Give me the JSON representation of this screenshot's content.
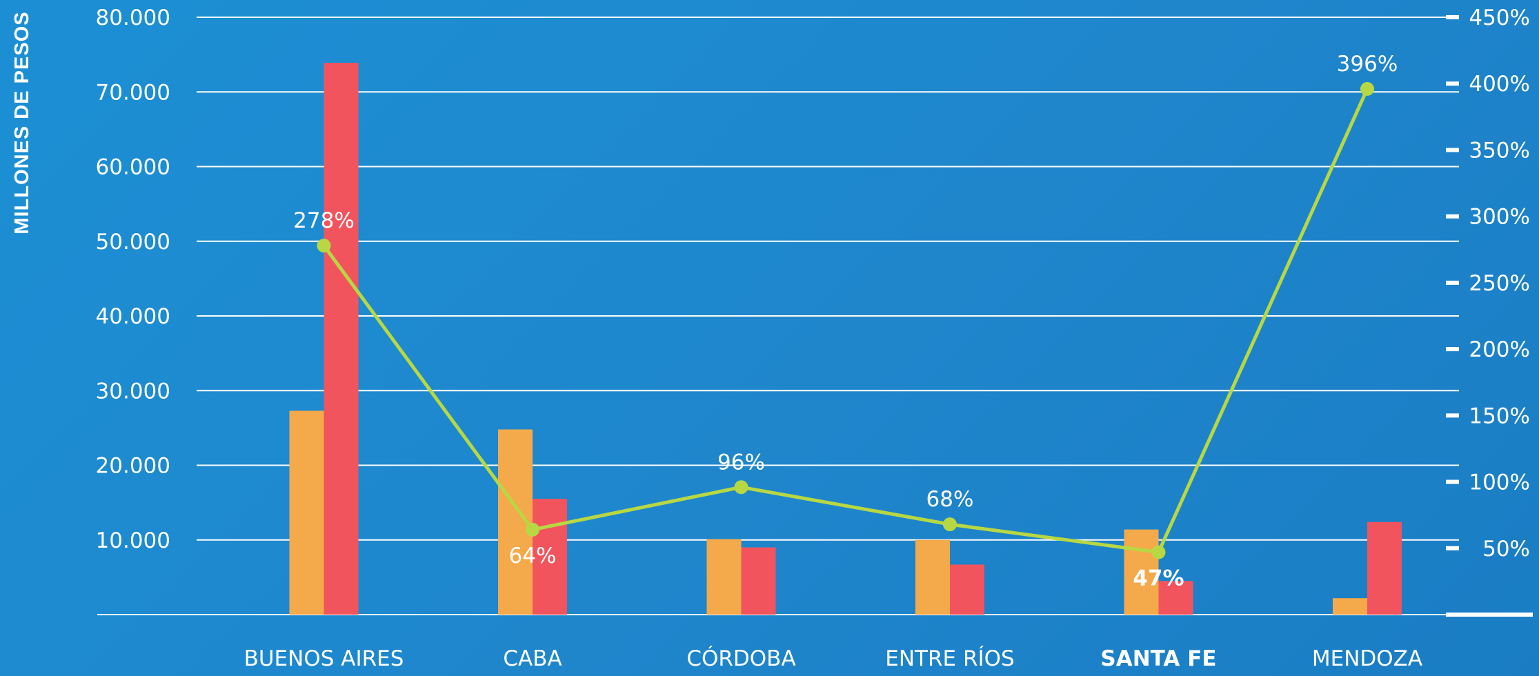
{
  "chart_data": {
    "type": "bar",
    "categories": [
      "BUENOS AIRES",
      "CABA",
      "CÓRDOBA",
      "ENTRE RÍOS",
      "SANTA FE",
      "MENDOZA"
    ],
    "highlighted_category": "SANTA FE",
    "series": [
      {
        "values": [
          27300,
          24800,
          10100,
          10000,
          11400,
          2200
        ],
        "color": "#f4a94a"
      },
      {
        "values": [
          73900,
          15500,
          9000,
          6700,
          4500,
          12400
        ],
        "color": "#f2545e"
      }
    ],
    "line_series": {
      "axis": "right",
      "values": [
        278,
        64,
        96,
        68,
        47,
        396
      ],
      "labels": [
        "278%",
        "64%",
        "96%",
        "68%",
        "47%",
        "396%"
      ],
      "color": "#b8d843"
    },
    "ylabel": "MILLONES DE PESOS",
    "ylim": [
      0,
      80000
    ],
    "y_ticks": [
      "80.000",
      "70.000",
      "60.000",
      "50.000",
      "40.000",
      "30.000",
      "20.000",
      "10.000"
    ],
    "y_tick_values": [
      80000,
      70000,
      60000,
      50000,
      40000,
      30000,
      20000,
      10000
    ],
    "y2lim": [
      0,
      450
    ],
    "y2_ticks": [
      "450%",
      "400%",
      "350%",
      "300%",
      "250%",
      "200%",
      "150%",
      "100%",
      "50%"
    ],
    "y2_tick_values": [
      450,
      400,
      350,
      300,
      250,
      200,
      150,
      100,
      50
    ],
    "grid": true,
    "legend": "none"
  }
}
